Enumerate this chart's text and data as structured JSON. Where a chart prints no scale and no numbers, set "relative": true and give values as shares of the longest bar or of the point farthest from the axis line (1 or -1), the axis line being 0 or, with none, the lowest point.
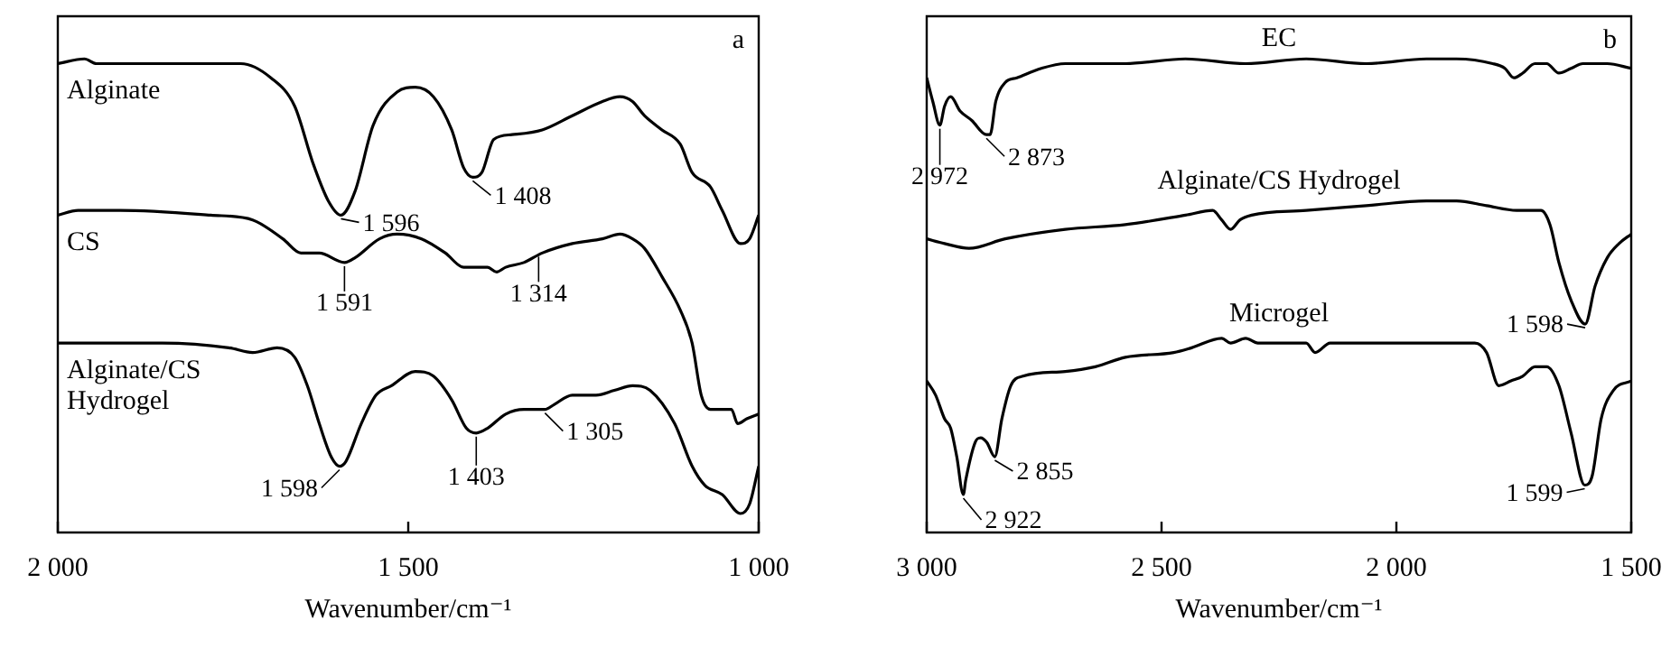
{
  "chart_data": [
    {
      "type": "line",
      "relative": true,
      "xlabel": "Wavenumber/cm⁻¹",
      "xlim": [
        2000,
        1000
      ],
      "xticks": [
        {
          "value": 2000,
          "label": "2 000"
        },
        {
          "value": 1500,
          "label": "1 500"
        },
        {
          "value": 1000,
          "label": "1 000"
        }
      ],
      "tick_labels": "x",
      "series": [
        {
          "name": "Alginate",
          "color": "#000000",
          "x": [
            2000,
            1962,
            1945,
            1851,
            1825,
            1739,
            1696,
            1662,
            1636,
            1614,
            1596,
            1576,
            1550,
            1516,
            1490,
            1464,
            1438,
            1421,
            1408,
            1395,
            1378,
            1352,
            1309,
            1266,
            1223,
            1198,
            1180,
            1163,
            1138,
            1112,
            1095,
            1069,
            1052,
            1026,
            1013,
            1000
          ],
          "values": [
            0.99,
            1.0,
            0.99,
            0.99,
            0.99,
            0.99,
            0.96,
            0.9,
            0.78,
            0.7,
            0.67,
            0.72,
            0.86,
            0.93,
            0.94,
            0.92,
            0.85,
            0.77,
            0.75,
            0.76,
            0.83,
            0.84,
            0.85,
            0.88,
            0.91,
            0.92,
            0.91,
            0.88,
            0.85,
            0.82,
            0.76,
            0.73,
            0.68,
            0.61,
            0.62,
            0.67
          ]
        },
        {
          "name": "CS",
          "color": "#000000",
          "x": [
            2000,
            1971,
            1911,
            1782,
            1722,
            1679,
            1653,
            1627,
            1591,
            1576,
            1541,
            1516,
            1481,
            1447,
            1421,
            1400,
            1387,
            1374,
            1361,
            1335,
            1309,
            1266,
            1223,
            1198,
            1180,
            1163,
            1138,
            1112,
            1095,
            1082,
            1069,
            1039,
            1030,
            1017,
            1000
          ],
          "values": [
            0.67,
            0.68,
            0.68,
            0.67,
            0.66,
            0.62,
            0.59,
            0.59,
            0.57,
            0.58,
            0.62,
            0.63,
            0.62,
            0.59,
            0.56,
            0.56,
            0.56,
            0.55,
            0.56,
            0.57,
            0.59,
            0.61,
            0.62,
            0.63,
            0.62,
            0.6,
            0.54,
            0.47,
            0.4,
            0.29,
            0.26,
            0.26,
            0.23,
            0.24,
            0.25
          ]
        },
        {
          "name": "Alginate/CS Hydrogel",
          "color": "#000000",
          "x": [
            2000,
            1971,
            1911,
            1851,
            1756,
            1722,
            1687,
            1662,
            1644,
            1627,
            1610,
            1598,
            1589,
            1567,
            1546,
            1524,
            1490,
            1464,
            1438,
            1417,
            1403,
            1387,
            1361,
            1335,
            1305,
            1292,
            1266,
            1232,
            1206,
            1180,
            1155,
            1120,
            1095,
            1077,
            1052,
            1026,
            1013,
            1000
          ],
          "values": [
            0.4,
            0.4,
            0.4,
            0.4,
            0.39,
            0.38,
            0.39,
            0.37,
            0.31,
            0.23,
            0.16,
            0.14,
            0.15,
            0.23,
            0.29,
            0.31,
            0.34,
            0.33,
            0.28,
            0.22,
            0.21,
            0.22,
            0.25,
            0.26,
            0.26,
            0.27,
            0.29,
            0.29,
            0.3,
            0.31,
            0.3,
            0.23,
            0.14,
            0.1,
            0.08,
            0.04,
            0.06,
            0.14
          ]
        }
      ],
      "annotations": [
        "a",
        {
          "text": "1 596",
          "x": 1596,
          "y": 0.67
        },
        {
          "text": "1 408",
          "x": 1408,
          "y": 0.75
        },
        {
          "text": "1 591",
          "x": 1591,
          "y": 0.57
        },
        {
          "text": "1 314",
          "x": 1314,
          "y": 0.59
        },
        {
          "text": "1 598",
          "x": 1598,
          "y": 0.14
        },
        {
          "text": "1 403",
          "x": 1403,
          "y": 0.21
        },
        {
          "text": "1 305",
          "x": 1305,
          "y": 0.26
        }
      ]
    },
    {
      "type": "line",
      "relative": true,
      "xlabel": "Wavenumber/cm⁻¹",
      "xlim": [
        3000,
        1500
      ],
      "xticks": [
        {
          "value": 3000,
          "label": "3 000"
        },
        {
          "value": 2500,
          "label": "2 500"
        },
        {
          "value": 2000,
          "label": "2 000"
        },
        {
          "value": 1500,
          "label": "1 500"
        }
      ],
      "tick_labels": "x",
      "series": [
        {
          "name": "EC",
          "color": "#000000",
          "x": [
            3000,
            2987,
            2972,
            2962,
            2949,
            2929,
            2904,
            2873,
            2865,
            2853,
            2833,
            2808,
            2756,
            2705,
            2577,
            2449,
            2321,
            2192,
            2064,
            1936,
            1872,
            1795,
            1769,
            1750,
            1731,
            1705,
            1680,
            1654,
            1628,
            1603,
            1551,
            1500
          ],
          "values": [
            0.96,
            0.91,
            0.86,
            0.9,
            0.92,
            0.89,
            0.87,
            0.84,
            0.84,
            0.91,
            0.95,
            0.96,
            0.98,
            0.99,
            0.99,
            1.0,
            0.99,
            1.0,
            0.99,
            1.0,
            1.0,
            0.99,
            0.98,
            0.96,
            0.97,
            0.99,
            0.99,
            0.97,
            0.98,
            0.99,
            0.99,
            0.98
          ]
        },
        {
          "name": "Alginate/CS Hydrogel",
          "color": "#000000",
          "x": [
            3000,
            2962,
            2910,
            2833,
            2705,
            2577,
            2449,
            2391,
            2372,
            2353,
            2333,
            2308,
            2192,
            2064,
            1936,
            1872,
            1808,
            1744,
            1692,
            1673,
            1654,
            1628,
            1598,
            1577,
            1551,
            1526,
            1500
          ],
          "values": [
            0.62,
            0.61,
            0.6,
            0.62,
            0.64,
            0.65,
            0.67,
            0.68,
            0.66,
            0.64,
            0.66,
            0.67,
            0.68,
            0.69,
            0.7,
            0.7,
            0.69,
            0.68,
            0.68,
            0.65,
            0.57,
            0.49,
            0.44,
            0.52,
            0.58,
            0.61,
            0.63
          ]
        },
        {
          "name": "Microgel",
          "color": "#000000",
          "x": [
            3000,
            2981,
            2962,
            2949,
            2936,
            2922,
            2917,
            2897,
            2885,
            2872,
            2855,
            2840,
            2821,
            2795,
            2705,
            2641,
            2577,
            2474,
            2436,
            2372,
            2353,
            2321,
            2295,
            2192,
            2173,
            2141,
            2064,
            1936,
            1833,
            1808,
            1782,
            1756,
            1731,
            1705,
            1680,
            1654,
            1628,
            1599,
            1583,
            1564,
            1538,
            1500
          ],
          "values": [
            0.32,
            0.29,
            0.24,
            0.22,
            0.16,
            0.08,
            0.11,
            0.19,
            0.2,
            0.19,
            0.16,
            0.24,
            0.31,
            0.33,
            0.34,
            0.35,
            0.37,
            0.38,
            0.39,
            0.41,
            0.4,
            0.41,
            0.4,
            0.4,
            0.38,
            0.4,
            0.4,
            0.4,
            0.4,
            0.38,
            0.31,
            0.32,
            0.33,
            0.35,
            0.35,
            0.31,
            0.21,
            0.1,
            0.12,
            0.24,
            0.3,
            0.32
          ]
        }
      ],
      "annotations": [
        "b",
        {
          "text": "2 972",
          "x": 2972,
          "y": 0.86
        },
        {
          "text": "2 873",
          "x": 2873,
          "y": 0.84
        },
        {
          "text": "1 598",
          "x": 1598,
          "y": 0.44
        },
        {
          "text": "2 922",
          "x": 2922,
          "y": 0.08
        },
        {
          "text": "2 855",
          "x": 2855,
          "y": 0.16
        },
        {
          "text": "1 599",
          "x": 1599,
          "y": 0.1
        }
      ]
    }
  ]
}
